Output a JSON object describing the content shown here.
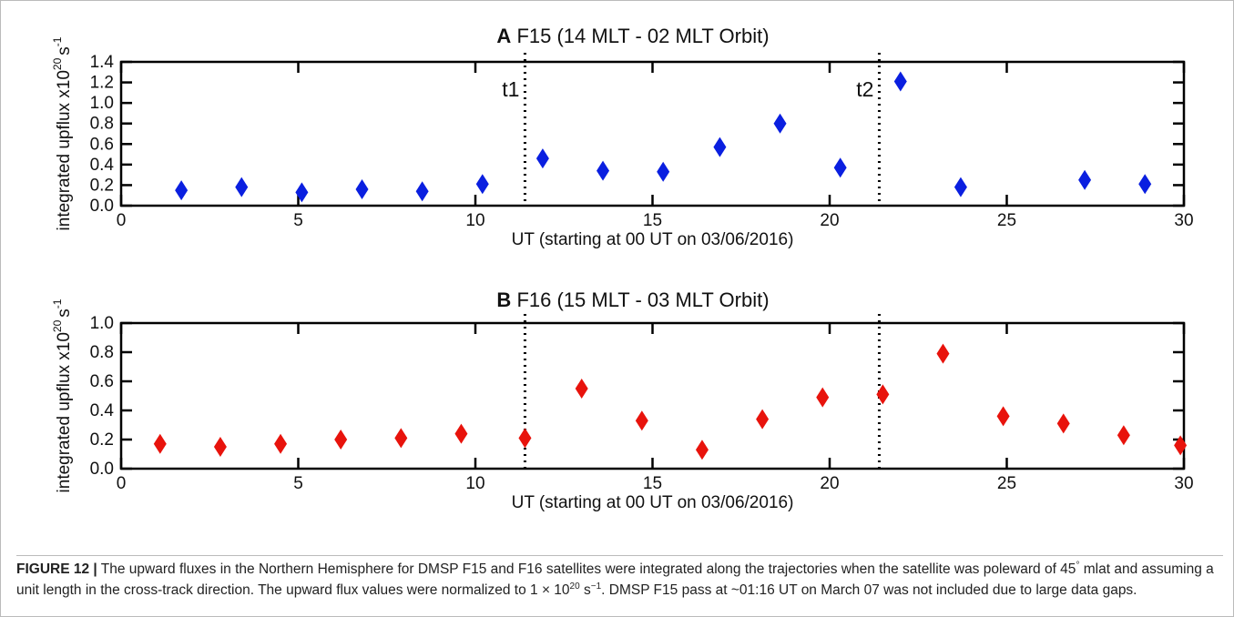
{
  "chart_data": [
    {
      "type": "scatter",
      "panel_label": "A",
      "title": "F15 (14 MLT - 02 MLT Orbit)",
      "xlabel": "UT (starting at 00 UT on 03/06/2016)",
      "ylabel_parts": [
        "integrated upflux x10",
        "20",
        "s",
        "-1"
      ],
      "xlim": [
        0,
        30
      ],
      "xticks": [
        0,
        5,
        10,
        15,
        20,
        25,
        30
      ],
      "ylim": [
        0,
        1.4
      ],
      "yticks": [
        {
          "value": 0,
          "label": "0.0"
        },
        0.2,
        0.4,
        0.6,
        0.8,
        {
          "value": 1,
          "label": "1.0"
        },
        1.2,
        1.4
      ],
      "vlines": [
        {
          "x": 11.4,
          "label": "t1"
        },
        {
          "x": 21.4,
          "label": "t2"
        }
      ],
      "series": [
        {
          "color": "#0a1fe0",
          "x": [
            1.7,
            3.4,
            5.1,
            6.8,
            8.5,
            10.2,
            11.9,
            13.6,
            15.3,
            16.9,
            18.6,
            20.3,
            22.0,
            23.7,
            27.2,
            28.9
          ],
          "values": [
            0.15,
            0.18,
            0.13,
            0.16,
            0.14,
            0.21,
            0.46,
            0.34,
            0.33,
            0.57,
            0.8,
            0.37,
            1.21,
            0.18,
            0.25,
            0.21
          ]
        }
      ]
    },
    {
      "type": "scatter",
      "panel_label": "B",
      "title": "F16 (15 MLT - 03 MLT Orbit)",
      "xlabel": "UT (starting at 00 UT on 03/06/2016)",
      "ylabel_parts": [
        "integrated upflux x10",
        "20",
        "s",
        "-1"
      ],
      "xlim": [
        0,
        30
      ],
      "xticks": [
        0,
        5,
        10,
        15,
        20,
        25,
        30
      ],
      "ylim": [
        0,
        1
      ],
      "yticks": [
        {
          "value": 0,
          "label": "0.0"
        },
        0.2,
        0.4,
        0.6,
        0.8,
        {
          "value": 1,
          "label": "1.0"
        }
      ],
      "vlines": [
        {
          "x": 11.4
        },
        {
          "x": 21.4
        }
      ],
      "series": [
        {
          "color": "#e8130c",
          "x": [
            1.1,
            2.8,
            4.5,
            6.2,
            7.9,
            9.6,
            11.4,
            13.0,
            14.7,
            16.4,
            18.1,
            19.8,
            21.5,
            23.2,
            24.9,
            26.6,
            28.3,
            29.9
          ],
          "values": [
            0.17,
            0.15,
            0.17,
            0.2,
            0.21,
            0.24,
            0.21,
            0.55,
            0.33,
            0.13,
            0.34,
            0.49,
            0.51,
            0.79,
            0.36,
            0.31,
            0.23,
            0.16
          ]
        }
      ]
    }
  ],
  "caption": {
    "label": "FIGURE 12 |",
    "parts": [
      "The upward fluxes in the Northern Hemisphere for DMSP F15 and F16 satellites were integrated along the trajectories when the satellite was poleward of 45",
      "°",
      " mlat and assuming a unit length in the cross-track direction. The upward flux values were normalized to 1 × 10",
      "20",
      " s",
      "−1",
      ". DMSP F15 pass at ~01:16 UT on March 07 was not included due to large data gaps."
    ]
  }
}
